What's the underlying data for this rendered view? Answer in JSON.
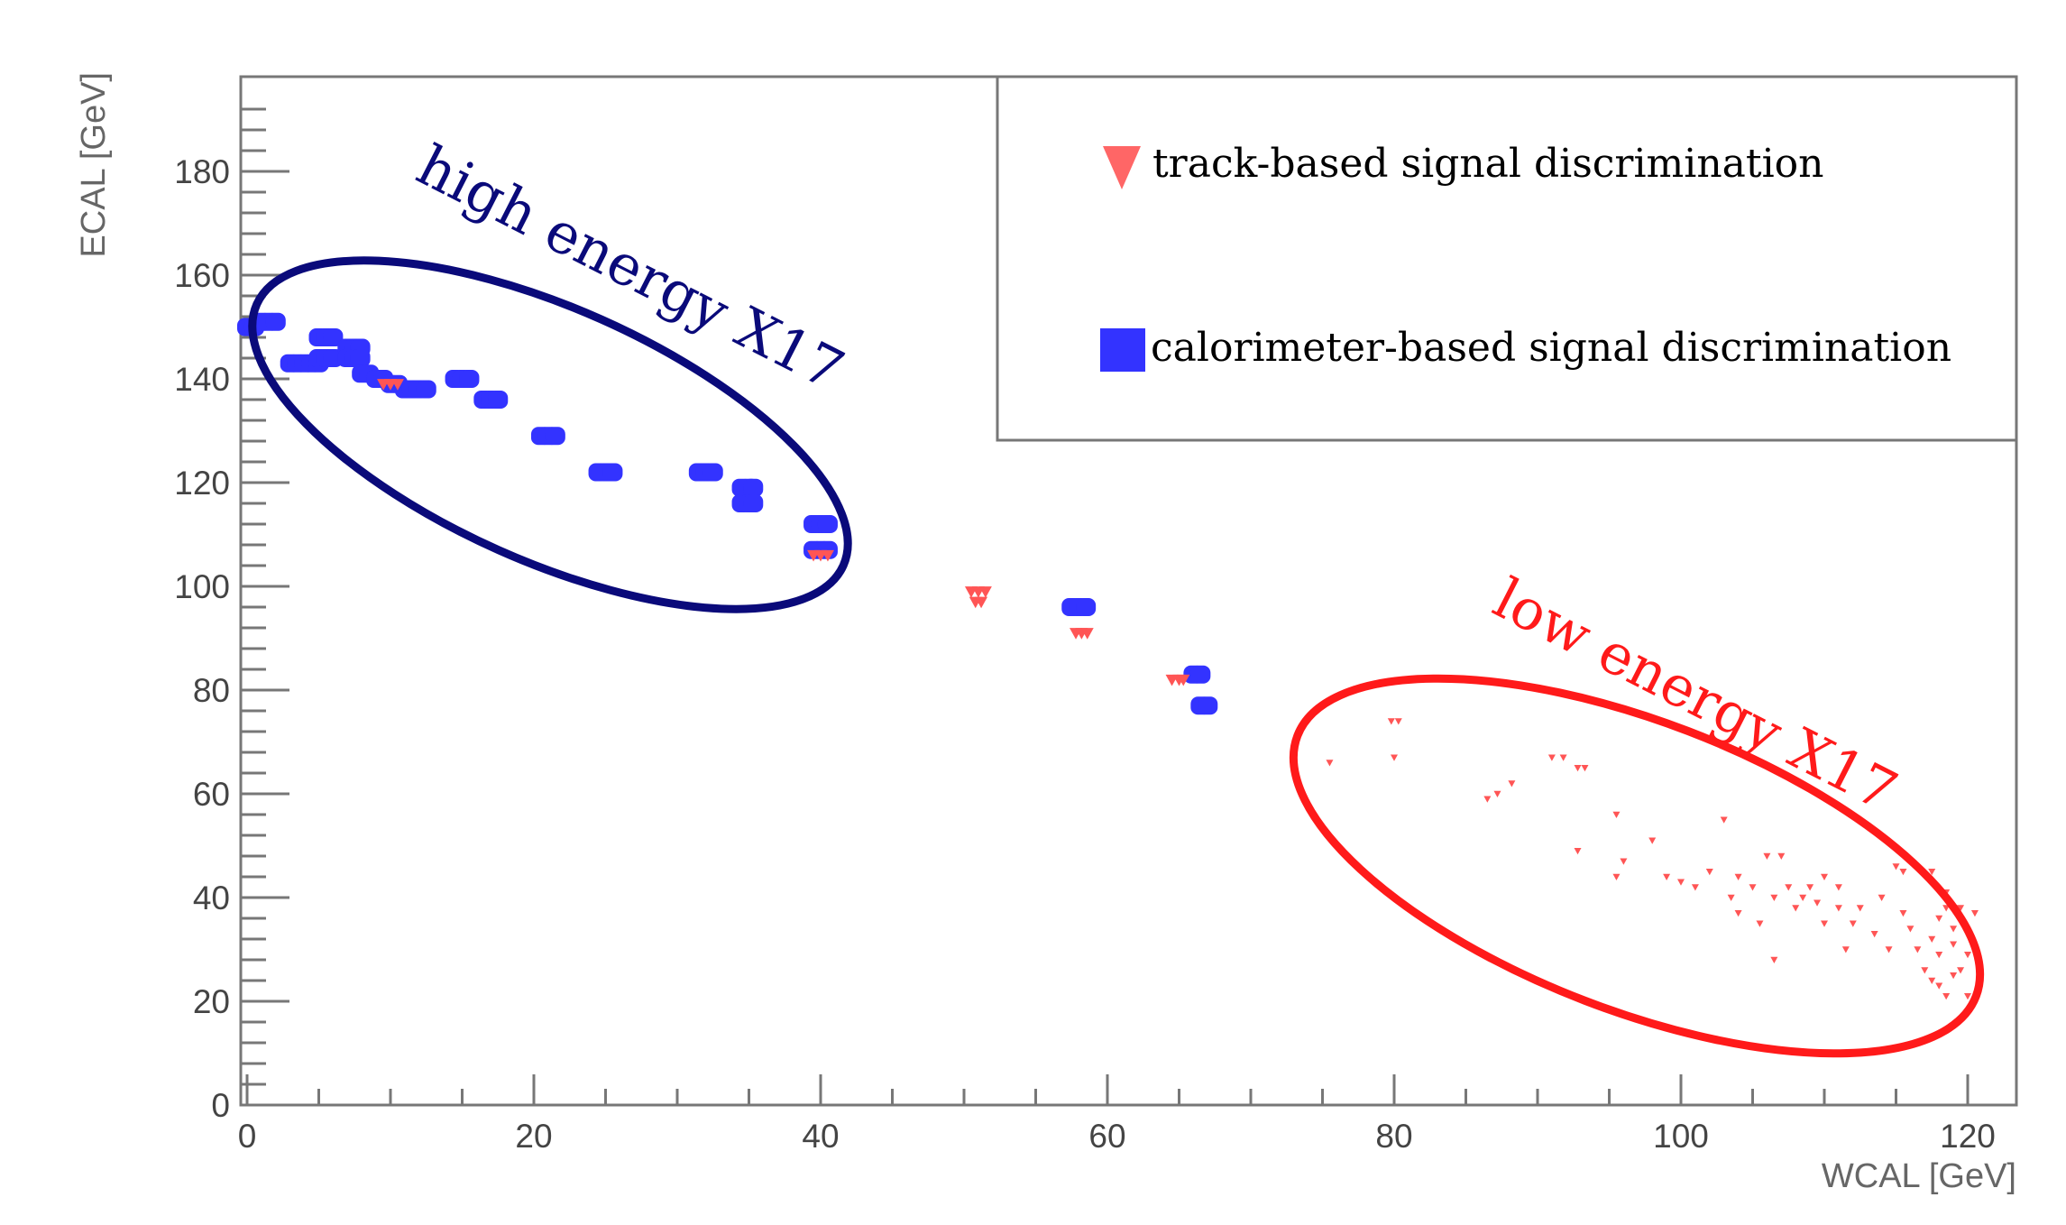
{
  "chart_data": {
    "type": "scatter",
    "xlabel": "WCAL [GeV]",
    "ylabel": "ECAL [GeV]",
    "xlim": [
      0,
      124
    ],
    "ylim": [
      0,
      200
    ],
    "x_ticks": [
      "0",
      "20",
      "40",
      "60",
      "80",
      "100",
      "120"
    ],
    "y_ticks": [
      "0",
      "20",
      "40",
      "60",
      "80",
      "100",
      "120",
      "140",
      "160",
      "180"
    ],
    "x_major_values": [
      0,
      20,
      40,
      60,
      80,
      100,
      120
    ],
    "y_major_values": [
      0,
      20,
      40,
      60,
      80,
      100,
      120,
      140,
      160,
      180
    ],
    "grid": false,
    "legend_position": "top-right",
    "series": [
      {
        "name": "track-based signal discrimination",
        "marker": "triangle-down",
        "color": "#ff5555",
        "groups": [
          {
            "x": [
              9.5,
              10,
              10.5
            ],
            "y": [
              139,
              139,
              139
            ]
          },
          {
            "x": [
              39.5,
              40,
              40.5
            ],
            "y": [
              106,
              106,
              106
            ]
          },
          {
            "x": [
              50.5,
              51,
              51.5,
              50.8,
              51.2
            ],
            "y": [
              99,
              99,
              99,
              97,
              97
            ]
          },
          {
            "x": [
              57.8,
              58.2,
              58.6
            ],
            "y": [
              91,
              91,
              91
            ]
          },
          {
            "x": [
              64.5,
              65,
              65.3
            ],
            "y": [
              82,
              82,
              82
            ]
          }
        ],
        "sparse_points": [
          [
            75.5,
            66
          ],
          [
            79.8,
            74
          ],
          [
            80.3,
            74
          ],
          [
            80,
            67
          ],
          [
            86.5,
            59
          ],
          [
            87.2,
            60
          ],
          [
            88.2,
            62
          ],
          [
            91,
            67
          ],
          [
            91.8,
            67
          ],
          [
            92.8,
            65
          ],
          [
            93.3,
            65
          ],
          [
            92.8,
            49
          ],
          [
            95.5,
            56
          ],
          [
            95.5,
            44
          ],
          [
            96,
            47
          ],
          [
            98,
            51
          ],
          [
            99,
            44
          ],
          [
            100,
            43
          ],
          [
            101,
            42
          ],
          [
            102,
            45
          ],
          [
            103,
            55
          ],
          [
            103.5,
            40
          ],
          [
            104,
            37
          ],
          [
            104,
            44
          ],
          [
            105,
            42
          ],
          [
            105.5,
            35
          ],
          [
            106,
            48
          ],
          [
            106.5,
            40
          ],
          [
            106.5,
            28
          ],
          [
            107,
            48
          ],
          [
            107.5,
            42
          ],
          [
            108,
            38
          ],
          [
            108.5,
            40
          ],
          [
            109,
            42
          ],
          [
            109.5,
            39
          ],
          [
            110,
            44
          ],
          [
            110,
            35
          ],
          [
            111,
            42
          ],
          [
            111,
            38
          ],
          [
            111.5,
            30
          ],
          [
            112,
            35
          ],
          [
            112.5,
            38
          ],
          [
            113.5,
            33
          ],
          [
            114,
            40
          ],
          [
            114.5,
            30
          ],
          [
            115,
            46
          ],
          [
            115.5,
            45
          ],
          [
            115.5,
            37
          ],
          [
            116,
            34
          ],
          [
            116.5,
            30
          ],
          [
            117,
            26
          ],
          [
            117.5,
            24
          ],
          [
            117.5,
            32
          ],
          [
            117.5,
            45
          ],
          [
            118,
            36
          ],
          [
            118,
            23
          ],
          [
            118,
            29
          ],
          [
            118.5,
            41
          ],
          [
            118.5,
            21
          ],
          [
            118.5,
            38
          ],
          [
            119,
            31
          ],
          [
            119,
            25
          ],
          [
            119,
            34
          ],
          [
            119.5,
            26
          ],
          [
            119.5,
            38
          ],
          [
            120,
            29
          ],
          [
            120,
            21
          ],
          [
            120.5,
            37
          ]
        ]
      },
      {
        "name": "calorimeter-based signal discrimination",
        "marker": "square",
        "color": "#3333ff",
        "groups": [
          {
            "x": [
              0,
              0.5,
              1,
              1.5,
              2
            ],
            "y": [
              150,
              150,
              151,
              151,
              151
            ]
          },
          {
            "x": [
              3,
              3.5,
              4,
              4.5,
              5
            ],
            "y": [
              143,
              143,
              143,
              143,
              143
            ]
          },
          {
            "x": [
              5,
              5.5,
              6
            ],
            "y": [
              148,
              148,
              148
            ]
          },
          {
            "x": [
              5,
              5.5,
              6
            ],
            "y": [
              144,
              144,
              144
            ]
          },
          {
            "x": [
              7,
              7.5,
              7.9
            ],
            "y": [
              146,
              146,
              146
            ]
          },
          {
            "x": [
              7,
              7.5,
              7.9
            ],
            "y": [
              144,
              144,
              144
            ]
          },
          {
            "x": [
              8,
              8.5,
              9,
              9.5,
              10,
              10.5
            ],
            "y": [
              141,
              141,
              140,
              140,
              139,
              139
            ]
          },
          {
            "x": [
              11,
              11.5,
              12,
              12.5
            ],
            "y": [
              138,
              138,
              138,
              138
            ]
          },
          {
            "x": [
              14.5,
              15,
              15.5
            ],
            "y": [
              140,
              140,
              140
            ]
          },
          {
            "x": [
              16.5,
              17,
              17.5
            ],
            "y": [
              136,
              136,
              136
            ]
          },
          {
            "x": [
              20.5,
              21,
              21.5
            ],
            "y": [
              129,
              129,
              129
            ]
          },
          {
            "x": [
              24.5,
              25,
              25.5
            ],
            "y": [
              122,
              122,
              122
            ]
          },
          {
            "x": [
              31.5,
              32,
              32.5
            ],
            "y": [
              122,
              122,
              122
            ]
          },
          {
            "x": [
              34.5,
              35,
              35.3
            ],
            "y": [
              119,
              119,
              119
            ]
          },
          {
            "x": [
              34.5,
              35,
              35.3
            ],
            "y": [
              116,
              116,
              116
            ]
          },
          {
            "x": [
              39.5,
              40,
              40.5
            ],
            "y": [
              112,
              112,
              112
            ]
          },
          {
            "x": [
              39.5,
              40,
              40.5
            ],
            "y": [
              107,
              107,
              107
            ]
          },
          {
            "x": [
              57.5,
              58,
              58.5
            ],
            "y": [
              96,
              96,
              96
            ]
          },
          {
            "x": [
              66,
              66.5
            ],
            "y": [
              83,
              83
            ]
          },
          {
            "x": [
              66.5,
              67
            ],
            "y": [
              77,
              77
            ]
          }
        ]
      }
    ],
    "annotations": [
      {
        "text": "high energy X17",
        "color": "#0a0a7a",
        "ellipse_center": [
          22,
          130
        ],
        "ellipse_rx_data": 23,
        "ellipse_ry_data": 20
      },
      {
        "text": "low energy X17",
        "color": "#ff1a1a",
        "ellipse_center": [
          99,
          52
        ],
        "ellipse_rx_data": 25,
        "ellipse_ry_data": 18
      }
    ]
  }
}
